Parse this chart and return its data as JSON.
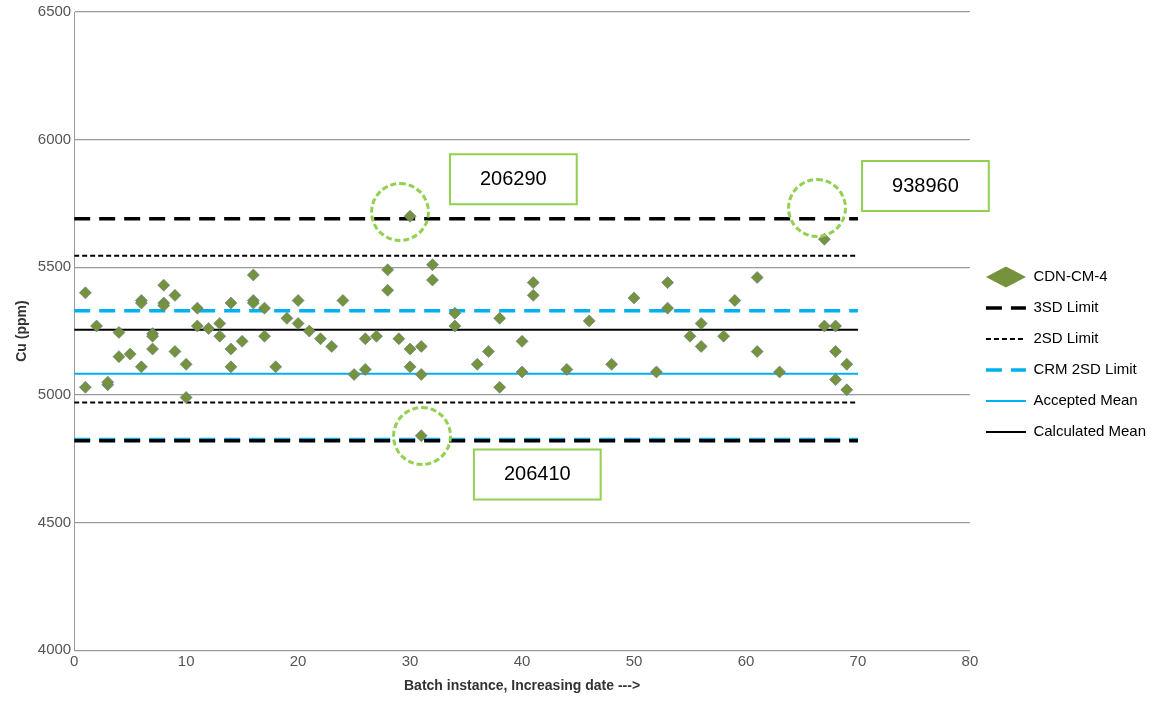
{
  "chart_data": {
    "type": "scatter",
    "xlabel": "Batch instance, Increasing date --->",
    "ylabel": "Cu (ppm)",
    "xlim": [
      0,
      80
    ],
    "xticks": [
      0,
      10,
      20,
      30,
      40,
      50,
      60,
      70,
      80
    ],
    "ylim": [
      4000,
      6500
    ],
    "yticks": [
      4000,
      4500,
      5000,
      5500,
      6000,
      6500
    ],
    "grid": "y",
    "legend": "right",
    "series": [
      {
        "name": "CDN-CM-4",
        "marker": "diamond",
        "color": "#76923c",
        "x": [
          1,
          1,
          2,
          3,
          3,
          4,
          4,
          5,
          6,
          6,
          6,
          7,
          7,
          7,
          8,
          8,
          8,
          9,
          9,
          10,
          10,
          11,
          11,
          12,
          13,
          13,
          14,
          14,
          14,
          15,
          16,
          16,
          16,
          17,
          17,
          18,
          19,
          20,
          20,
          21,
          22,
          23,
          24,
          25,
          26,
          26,
          27,
          28,
          28,
          29,
          30,
          30,
          30,
          31,
          31,
          31,
          32,
          32,
          34,
          34,
          36,
          37,
          38,
          38,
          40,
          40,
          41,
          41,
          44,
          46,
          48,
          50,
          52,
          53,
          53,
          55,
          56,
          56,
          58,
          59,
          61,
          61,
          63,
          67,
          67,
          68,
          68,
          68,
          69,
          69
        ],
        "values": [
          5400,
          5030,
          5270,
          5040,
          5050,
          5150,
          5245,
          5160,
          5370,
          5360,
          5110,
          5240,
          5230,
          5180,
          5430,
          5360,
          5350,
          5390,
          5170,
          4990,
          5120,
          5340,
          5270,
          5260,
          5280,
          5230,
          5360,
          5180,
          5110,
          5210,
          5470,
          5370,
          5360,
          5340,
          5230,
          5110,
          5300,
          5370,
          5280,
          5250,
          5220,
          5190,
          5370,
          5080,
          5220,
          5100,
          5230,
          5490,
          5410,
          5220,
          5700,
          5180,
          5110,
          5190,
          5080,
          4840,
          5510,
          5450,
          5320,
          5270,
          5120,
          5170,
          5300,
          5030,
          5210,
          5090,
          5440,
          5390,
          5100,
          5290,
          5120,
          5380,
          5090,
          5440,
          5340,
          5230,
          5280,
          5190,
          5230,
          5370,
          5460,
          5170,
          5090,
          5610,
          5270,
          5270,
          5170,
          5060,
          5120,
          5020
        ]
      },
      {
        "name": "3SD Limit",
        "type": "line",
        "marker": "none",
        "color": "#000000",
        "line_style": "dashed",
        "x": [
          0,
          70
        ],
        "values": [
          5690,
          5690
        ]
      },
      {
        "type": "line",
        "marker": "none",
        "color": "#000000",
        "line_style": "dashed",
        "x": [
          0,
          70
        ],
        "values": [
          4820,
          4820
        ]
      },
      {
        "name": "2SD Limit",
        "type": "line",
        "marker": "none",
        "color": "#000000",
        "line_style": "dotted",
        "x": [
          0,
          70
        ],
        "values": [
          5545,
          5545
        ]
      },
      {
        "type": "line",
        "marker": "none",
        "color": "#000000",
        "line_style": "dotted",
        "x": [
          0,
          70
        ],
        "values": [
          4970,
          4970
        ]
      },
      {
        "name": "CRM 2SD Limit",
        "type": "line",
        "marker": "none",
        "color": "#00b0f0",
        "line_style": "dashed",
        "x": [
          0,
          70
        ],
        "values": [
          5330,
          5330
        ]
      },
      {
        "type": "line",
        "marker": "none",
        "color": "#00b0f0",
        "line_style": "dashed",
        "x": [
          0,
          70
        ],
        "values": [
          4825,
          4825
        ]
      },
      {
        "name": "Accepted Mean",
        "type": "line",
        "marker": "none",
        "color": "#00b0f0",
        "line_style": "solid",
        "x": [
          0,
          70
        ],
        "values": [
          5083,
          5083
        ]
      },
      {
        "name": "Calculated Mean",
        "type": "line",
        "marker": "none",
        "color": "#000000",
        "line_style": "solid",
        "x": [
          0,
          70
        ],
        "values": [
          5255,
          5255
        ]
      }
    ],
    "annotations": [
      "206290",
      "938960",
      "206410"
    ]
  }
}
